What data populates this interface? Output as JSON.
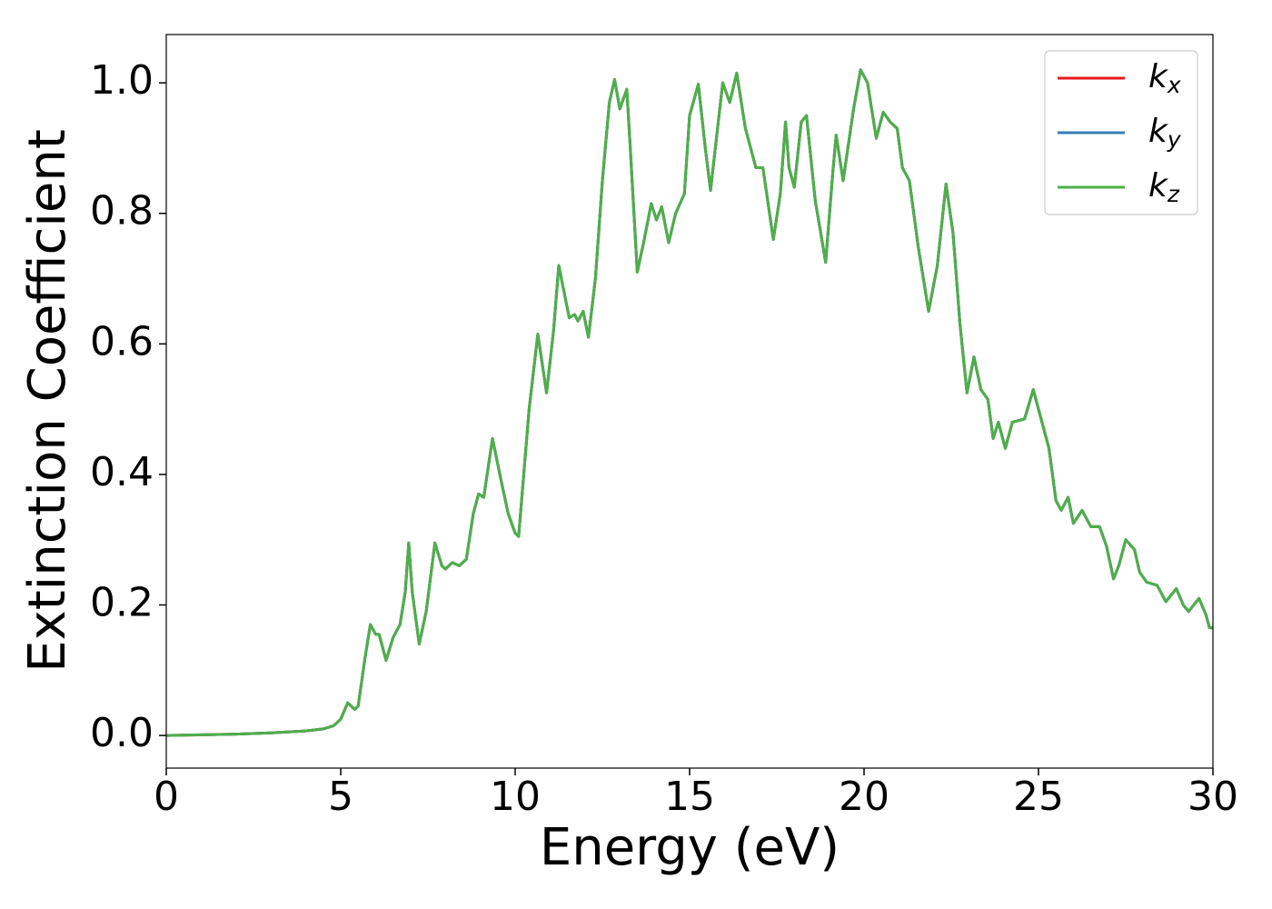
{
  "chart_data": {
    "type": "line",
    "xlabel": "Energy (eV)",
    "ylabel": "Extinction Coefficient",
    "xlim": [
      0,
      30
    ],
    "ylim": [
      -0.05,
      1.074
    ],
    "xticks": [
      0,
      5,
      10,
      15,
      20,
      25,
      30
    ],
    "yticks": [
      {
        "value": 0,
        "label": "0.0"
      },
      0.2,
      0.4,
      0.6,
      0.8,
      {
        "value": 1,
        "label": "1.0"
      }
    ],
    "grid": false,
    "legend": "upper right",
    "x": [
      0,
      1,
      2,
      3,
      4,
      4.5,
      4.8,
      5.0,
      5.2,
      5.4,
      5.5,
      5.7,
      5.85,
      6.0,
      6.1,
      6.3,
      6.5,
      6.7,
      6.85,
      6.95,
      7.05,
      7.25,
      7.45,
      7.7,
      7.9,
      8.0,
      8.2,
      8.4,
      8.6,
      8.8,
      8.95,
      9.1,
      9.35,
      9.6,
      9.8,
      10.0,
      10.1,
      10.4,
      10.65,
      10.9,
      11.1,
      11.25,
      11.4,
      11.55,
      11.7,
      11.8,
      11.95,
      12.1,
      12.3,
      12.5,
      12.7,
      12.85,
      13.0,
      13.2,
      13.3,
      13.5,
      13.7,
      13.9,
      14.05,
      14.2,
      14.4,
      14.6,
      14.85,
      15.0,
      15.25,
      15.45,
      15.6,
      15.8,
      15.95,
      16.15,
      16.35,
      16.6,
      16.9,
      17.1,
      17.4,
      17.6,
      17.75,
      17.85,
      18.0,
      18.2,
      18.35,
      18.6,
      18.9,
      19.1,
      19.2,
      19.4,
      19.7,
      19.9,
      20.1,
      20.35,
      20.55,
      20.75,
      20.95,
      21.1,
      21.3,
      21.55,
      21.85,
      22.1,
      22.35,
      22.55,
      22.75,
      22.95,
      23.15,
      23.35,
      23.55,
      23.7,
      23.85,
      24.05,
      24.25,
      24.6,
      24.85,
      25.05,
      25.3,
      25.5,
      25.65,
      25.85,
      26.0,
      26.25,
      26.5,
      26.75,
      26.95,
      27.15,
      27.3,
      27.5,
      27.75,
      27.9,
      28.1,
      28.4,
      28.65,
      28.95,
      29.15,
      29.3,
      29.6,
      29.8,
      29.9,
      30.0
    ],
    "series": [
      {
        "name": "kx",
        "color": "#e41a1c",
        "values": [
          0,
          0.001,
          0.002,
          0.004,
          0.007,
          0.01,
          0.015,
          0.025,
          0.05,
          0.04,
          0.045,
          0.12,
          0.17,
          0.155,
          0.155,
          0.115,
          0.15,
          0.17,
          0.22,
          0.295,
          0.22,
          0.14,
          0.19,
          0.295,
          0.26,
          0.255,
          0.265,
          0.26,
          0.27,
          0.34,
          0.37,
          0.365,
          0.455,
          0.39,
          0.34,
          0.31,
          0.305,
          0.5,
          0.615,
          0.525,
          0.62,
          0.72,
          0.68,
          0.64,
          0.645,
          0.635,
          0.65,
          0.61,
          0.7,
          0.85,
          0.97,
          1.005,
          0.96,
          0.99,
          0.9,
          0.71,
          0.76,
          0.815,
          0.79,
          0.81,
          0.755,
          0.8,
          0.83,
          0.95,
          0.998,
          0.9,
          0.835,
          0.93,
          1.0,
          0.97,
          1.015,
          0.93,
          0.87,
          0.87,
          0.76,
          0.83,
          0.94,
          0.87,
          0.84,
          0.94,
          0.95,
          0.82,
          0.725,
          0.86,
          0.92,
          0.85,
          0.96,
          1.02,
          1.0,
          0.915,
          0.955,
          0.94,
          0.93,
          0.87,
          0.85,
          0.75,
          0.65,
          0.72,
          0.845,
          0.77,
          0.63,
          0.525,
          0.58,
          0.53,
          0.515,
          0.455,
          0.48,
          0.44,
          0.48,
          0.485,
          0.53,
          0.49,
          0.44,
          0.36,
          0.345,
          0.365,
          0.325,
          0.345,
          0.32,
          0.32,
          0.29,
          0.24,
          0.26,
          0.3,
          0.285,
          0.25,
          0.235,
          0.23,
          0.205,
          0.225,
          0.2,
          0.19,
          0.21,
          0.185,
          0.165,
          0.165
        ]
      },
      {
        "name": "ky",
        "color": "#377eb8",
        "values": [
          0,
          0.001,
          0.002,
          0.004,
          0.007,
          0.01,
          0.015,
          0.025,
          0.05,
          0.04,
          0.045,
          0.12,
          0.17,
          0.155,
          0.155,
          0.115,
          0.15,
          0.17,
          0.22,
          0.295,
          0.22,
          0.14,
          0.19,
          0.295,
          0.26,
          0.255,
          0.265,
          0.26,
          0.27,
          0.34,
          0.37,
          0.365,
          0.455,
          0.39,
          0.34,
          0.31,
          0.305,
          0.5,
          0.615,
          0.525,
          0.62,
          0.72,
          0.68,
          0.64,
          0.645,
          0.635,
          0.65,
          0.61,
          0.7,
          0.85,
          0.97,
          1.005,
          0.96,
          0.99,
          0.9,
          0.71,
          0.76,
          0.815,
          0.79,
          0.81,
          0.755,
          0.8,
          0.83,
          0.95,
          0.998,
          0.9,
          0.835,
          0.93,
          1.0,
          0.97,
          1.015,
          0.93,
          0.87,
          0.87,
          0.76,
          0.83,
          0.94,
          0.87,
          0.84,
          0.94,
          0.95,
          0.82,
          0.725,
          0.86,
          0.92,
          0.85,
          0.96,
          1.02,
          1.0,
          0.915,
          0.955,
          0.94,
          0.93,
          0.87,
          0.85,
          0.75,
          0.65,
          0.72,
          0.845,
          0.77,
          0.63,
          0.525,
          0.58,
          0.53,
          0.515,
          0.455,
          0.48,
          0.44,
          0.48,
          0.485,
          0.53,
          0.49,
          0.44,
          0.36,
          0.345,
          0.365,
          0.325,
          0.345,
          0.32,
          0.32,
          0.29,
          0.24,
          0.26,
          0.3,
          0.285,
          0.25,
          0.235,
          0.23,
          0.205,
          0.225,
          0.2,
          0.19,
          0.21,
          0.185,
          0.165,
          0.165
        ]
      },
      {
        "name": "kz",
        "color": "#4daf4a",
        "values": [
          0,
          0.001,
          0.002,
          0.004,
          0.007,
          0.01,
          0.015,
          0.025,
          0.05,
          0.04,
          0.045,
          0.12,
          0.17,
          0.155,
          0.155,
          0.115,
          0.15,
          0.17,
          0.22,
          0.295,
          0.22,
          0.14,
          0.19,
          0.295,
          0.26,
          0.255,
          0.265,
          0.26,
          0.27,
          0.34,
          0.37,
          0.365,
          0.455,
          0.39,
          0.34,
          0.31,
          0.305,
          0.5,
          0.615,
          0.525,
          0.62,
          0.72,
          0.68,
          0.64,
          0.645,
          0.635,
          0.65,
          0.61,
          0.7,
          0.85,
          0.97,
          1.005,
          0.96,
          0.99,
          0.9,
          0.71,
          0.76,
          0.815,
          0.79,
          0.81,
          0.755,
          0.8,
          0.83,
          0.95,
          0.998,
          0.9,
          0.835,
          0.93,
          1.0,
          0.97,
          1.015,
          0.93,
          0.87,
          0.87,
          0.76,
          0.83,
          0.94,
          0.87,
          0.84,
          0.94,
          0.95,
          0.82,
          0.725,
          0.86,
          0.92,
          0.85,
          0.96,
          1.02,
          1.0,
          0.915,
          0.955,
          0.94,
          0.93,
          0.87,
          0.85,
          0.75,
          0.65,
          0.72,
          0.845,
          0.77,
          0.63,
          0.525,
          0.58,
          0.53,
          0.515,
          0.455,
          0.48,
          0.44,
          0.48,
          0.485,
          0.53,
          0.49,
          0.44,
          0.36,
          0.345,
          0.365,
          0.325,
          0.345,
          0.32,
          0.32,
          0.29,
          0.24,
          0.26,
          0.3,
          0.285,
          0.25,
          0.235,
          0.23,
          0.205,
          0.225,
          0.2,
          0.19,
          0.21,
          0.185,
          0.165,
          0.165
        ]
      }
    ]
  }
}
